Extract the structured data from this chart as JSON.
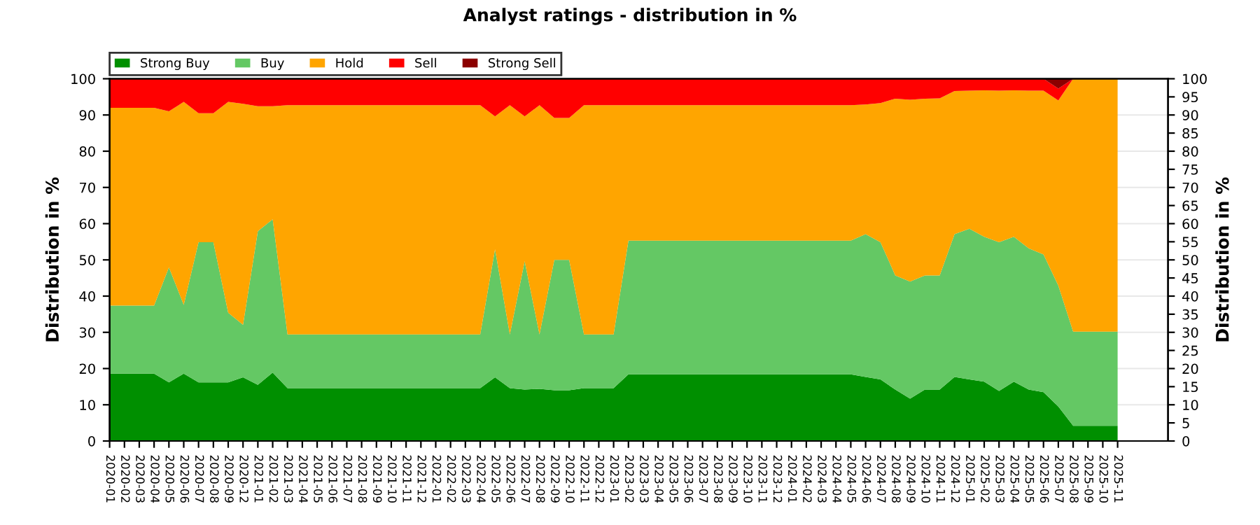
{
  "chart_data": {
    "type": "area",
    "stacked": true,
    "title": "Analyst ratings - distribution in %",
    "ylabel": "Distribution in %",
    "y2label": "Distribution in %",
    "categories": [
      "2020-01",
      "2020-02",
      "2020-03",
      "2020-04",
      "2020-05",
      "2020-06",
      "2020-07",
      "2020-08",
      "2020-09",
      "2020-12",
      "2021-01",
      "2021-02",
      "2021-03",
      "2021-04",
      "2021-05",
      "2021-06",
      "2021-07",
      "2021-08",
      "2021-09",
      "2021-10",
      "2021-11",
      "2021-12",
      "2022-01",
      "2022-02",
      "2022-03",
      "2022-04",
      "2022-05",
      "2022-06",
      "2022-07",
      "2022-08",
      "2022-09",
      "2022-10",
      "2022-11",
      "2022-12",
      "2023-01",
      "2023-02",
      "2023-03",
      "2023-04",
      "2023-05",
      "2023-06",
      "2023-07",
      "2023-08",
      "2023-09",
      "2023-10",
      "2023-11",
      "2023-12",
      "2024-01",
      "2024-02",
      "2024-03",
      "2024-04",
      "2024-05",
      "2024-06",
      "2024-07",
      "2024-08",
      "2024-09",
      "2024-10",
      "2024-11",
      "2024-12",
      "2025-01",
      "2025-02",
      "2025-03",
      "2025-04",
      "2025-05",
      "2025-06",
      "2025-07",
      "2025-08",
      "2025-09",
      "2025-10",
      "2025-11"
    ],
    "series": [
      {
        "name": "Strong Buy",
        "color": "#008f00",
        "values": [
          18.6,
          18.6,
          18.6,
          18.6,
          16.2,
          18.6,
          16.2,
          16.2,
          16.2,
          17.6,
          15.5,
          18.9,
          14.6,
          14.6,
          14.6,
          14.6,
          14.6,
          14.6,
          14.6,
          14.6,
          14.6,
          14.6,
          14.6,
          14.6,
          14.6,
          14.6,
          17.6,
          14.6,
          14.2,
          14.4,
          14.0,
          14.0,
          14.6,
          14.6,
          14.6,
          18.4,
          18.4,
          18.4,
          18.4,
          18.4,
          18.4,
          18.4,
          18.4,
          18.4,
          18.4,
          18.4,
          18.4,
          18.4,
          18.4,
          18.4,
          18.4,
          17.7,
          17.0,
          14.2,
          11.7,
          14.2,
          14.2,
          17.7,
          17.0,
          16.4,
          13.8,
          16.4,
          14.2,
          13.5,
          9.5,
          4.2,
          4.2,
          4.2,
          4.2
        ]
      },
      {
        "name": "Buy",
        "color": "#64c864",
        "values": [
          18.8,
          18.8,
          18.8,
          18.8,
          31.7,
          19.0,
          38.7,
          38.7,
          19.2,
          14.5,
          42.4,
          42.3,
          14.8,
          14.8,
          14.8,
          14.8,
          14.8,
          14.8,
          14.8,
          14.8,
          14.8,
          14.8,
          14.8,
          14.8,
          14.8,
          14.8,
          35.3,
          14.8,
          35.4,
          15.0,
          36.0,
          36.0,
          14.8,
          14.8,
          14.8,
          36.9,
          36.9,
          36.9,
          36.9,
          36.9,
          36.9,
          36.9,
          36.9,
          36.9,
          36.9,
          36.9,
          36.9,
          36.9,
          36.9,
          36.9,
          36.9,
          39.4,
          37.9,
          31.5,
          32.3,
          31.5,
          31.5,
          39.4,
          41.6,
          40.0,
          41.1,
          40.0,
          39.0,
          38.0,
          33.4,
          26.0,
          26.0,
          26.0,
          26.0
        ]
      },
      {
        "name": "Hold",
        "color": "#ffa500",
        "values": [
          54.6,
          54.6,
          54.6,
          54.6,
          43.1,
          56.0,
          35.6,
          35.6,
          58.2,
          61.0,
          34.5,
          31.2,
          63.3,
          63.3,
          63.3,
          63.3,
          63.3,
          63.3,
          63.3,
          63.3,
          63.3,
          63.3,
          63.3,
          63.3,
          63.3,
          63.3,
          36.7,
          63.3,
          40.0,
          63.3,
          39.2,
          39.2,
          63.3,
          63.3,
          63.3,
          37.4,
          37.4,
          37.4,
          37.4,
          37.4,
          37.4,
          37.4,
          37.4,
          37.4,
          37.4,
          37.4,
          37.4,
          37.4,
          37.4,
          37.4,
          37.4,
          35.8,
          38.4,
          48.8,
          50.2,
          48.8,
          48.9,
          39.5,
          38.1,
          40.4,
          41.8,
          40.4,
          43.5,
          45.2,
          51.1,
          69.8,
          69.8,
          69.8,
          69.8
        ]
      },
      {
        "name": "Sell",
        "color": "#ff0000",
        "values": [
          8.0,
          8.0,
          8.0,
          8.0,
          9.0,
          6.4,
          9.5,
          9.5,
          6.4,
          6.9,
          7.6,
          7.6,
          7.3,
          7.3,
          7.3,
          7.3,
          7.3,
          7.3,
          7.3,
          7.3,
          7.3,
          7.3,
          7.3,
          7.3,
          7.3,
          7.3,
          10.4,
          7.3,
          10.4,
          7.3,
          10.8,
          10.8,
          7.3,
          7.3,
          7.3,
          7.3,
          7.3,
          7.3,
          7.3,
          7.3,
          7.3,
          7.3,
          7.3,
          7.3,
          7.3,
          7.3,
          7.3,
          7.3,
          7.3,
          7.3,
          7.3,
          7.1,
          6.7,
          5.5,
          5.8,
          5.5,
          5.4,
          3.4,
          3.3,
          3.2,
          3.3,
          3.2,
          3.3,
          3.3,
          3.3,
          0,
          0,
          0,
          0
        ]
      },
      {
        "name": "Strong Sell",
        "color": "#8b0000",
        "values": [
          0,
          0,
          0,
          0,
          0,
          0,
          0,
          0,
          0,
          0,
          0,
          0,
          0,
          0,
          0,
          0,
          0,
          0,
          0,
          0,
          0,
          0,
          0,
          0,
          0,
          0,
          0,
          0,
          0,
          0,
          0,
          0,
          0,
          0,
          0,
          0,
          0,
          0,
          0,
          0,
          0,
          0,
          0,
          0,
          0,
          0,
          0,
          0,
          0,
          0,
          0,
          0,
          0,
          0,
          0,
          0,
          0,
          0,
          0,
          0,
          0,
          0,
          0,
          0,
          2.7,
          0,
          0,
          0,
          0
        ]
      }
    ],
    "ylim": [
      0,
      100
    ],
    "yticks": [
      0,
      10,
      20,
      30,
      40,
      50,
      60,
      70,
      80,
      90,
      100
    ],
    "y2lim": [
      0,
      100
    ],
    "y2ticks": [
      0,
      5,
      10,
      15,
      20,
      25,
      30,
      35,
      40,
      45,
      50,
      55,
      60,
      65,
      70,
      75,
      80,
      85,
      90,
      95,
      100
    ],
    "grid": "y",
    "legend": "top left"
  }
}
